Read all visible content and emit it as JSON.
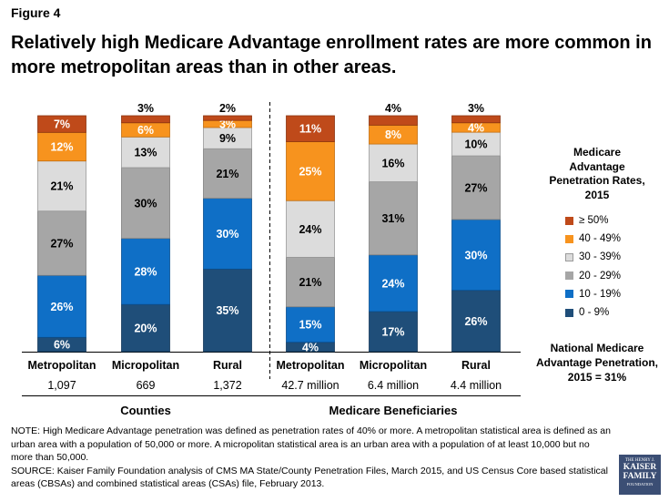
{
  "figure_label": "Figure 4",
  "title": "Relatively high Medicare Advantage enrollment rates are more common in more metropolitan areas than in other areas.",
  "chart_data": {
    "type": "stacked-bar",
    "y_unit": "%",
    "bands": [
      {
        "name": "0 - 9%",
        "color": "#1f4e79"
      },
      {
        "name": "10 - 19%",
        "color": "#0f6fc6"
      },
      {
        "name": "20 - 29%",
        "color": "#a6a6a6"
      },
      {
        "name": "30 - 39%",
        "color": "#dcdcdc"
      },
      {
        "name": "40 - 49%",
        "color": "#f7931e"
      },
      {
        "name": "≥ 50%",
        "color": "#bf4a1a"
      }
    ],
    "groups": [
      {
        "name": "Counties",
        "bars": [
          {
            "category": "Metropolitan",
            "count": "1,097",
            "values": [
              6,
              26,
              27,
              21,
              12,
              7
            ]
          },
          {
            "category": "Micropolitan",
            "count": "669",
            "values": [
              20,
              28,
              30,
              13,
              6,
              3
            ]
          },
          {
            "category": "Rural",
            "count": "1,372",
            "values": [
              35,
              30,
              21,
              9,
              3,
              2
            ]
          }
        ]
      },
      {
        "name": "Medicare Beneficiaries",
        "bars": [
          {
            "category": "Metropolitan",
            "count": "42.7 million",
            "values": [
              4,
              15,
              21,
              24,
              25,
              11
            ]
          },
          {
            "category": "Micropolitan",
            "count": "6.4 million",
            "values": [
              17,
              24,
              31,
              16,
              8,
              4
            ]
          },
          {
            "category": "Rural",
            "count": "4.4 million",
            "values": [
              26,
              30,
              27,
              10,
              4,
              3
            ]
          }
        ]
      }
    ]
  },
  "legend": {
    "title": "Medicare Advantage Penetration Rates, 2015",
    "items": [
      {
        "label": "≥ 50%",
        "color": "#bf4a1a"
      },
      {
        "label": "40 - 49%",
        "color": "#f7931e"
      },
      {
        "label": "30 - 39%",
        "color": "#dcdcdc"
      },
      {
        "label": "20 - 29%",
        "color": "#a6a6a6"
      },
      {
        "label": "10 - 19%",
        "color": "#0f6fc6"
      },
      {
        "label": "0 - 9%",
        "color": "#1f4e79"
      }
    ]
  },
  "national_note": "National Medicare Advantage Penetration, 2015 = 31%",
  "note": "NOTE: High Medicare Advantage penetration was defined as penetration rates of 40% or more. A metropolitan statistical area is defined as  an urban area with a population of 50,000 or more. A micropolitan statistical area is an urban area with a population of at least 10,000 but no more than 50,000.",
  "source": "SOURCE: Kaiser Family Foundation analysis of CMS MA State/County Penetration Files, March 2015, and US Census Core based statistical areas (CBSAs) and combined statistical areas (CSAs) file, February 2013.",
  "logo": {
    "line1": "THE HENRY J.",
    "line2": "KAISER",
    "line3": "FAMILY",
    "line4": "FOUNDATION"
  }
}
